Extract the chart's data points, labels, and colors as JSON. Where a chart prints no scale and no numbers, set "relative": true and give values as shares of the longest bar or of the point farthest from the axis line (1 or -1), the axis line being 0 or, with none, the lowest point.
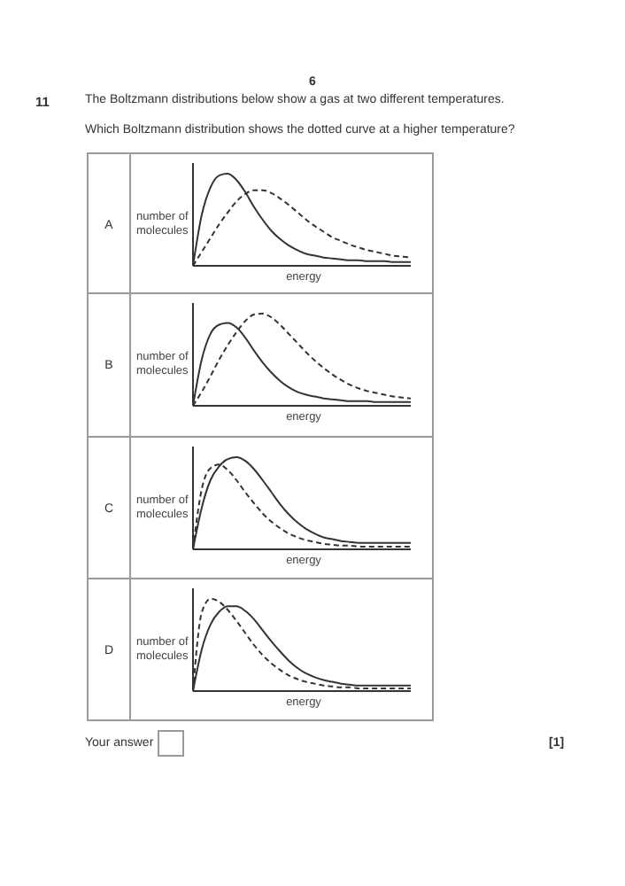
{
  "chart_data": [
    {
      "type": "line",
      "xlabel": "energy",
      "ylabel": "number of molecules",
      "relative": true,
      "marker": "none",
      "annotations": [
        "A",
        "6",
        "11",
        "The Boltzmann distributions below show a gas at two different temperatures.",
        "Which Boltzmann distribution shows the dotted curve at a higher temperature?"
      ],
      "categories": [
        null,
        null,
        null,
        null,
        null,
        null,
        null,
        null,
        null,
        null,
        null,
        null,
        null,
        null,
        null,
        null,
        null,
        null,
        null,
        null,
        null,
        null,
        null,
        null,
        null,
        null
      ],
      "series": [
        {
          "color": "#333333",
          "line_style": "solid",
          "values": [
            0,
            0.55,
            0.85,
            0.98,
            1.0,
            0.93,
            0.8,
            0.64,
            0.5,
            0.38,
            0.29,
            0.22,
            0.17,
            0.13,
            0.11,
            0.09,
            0.08,
            0.07,
            0.06,
            0.06,
            0.05,
            0.05,
            0.05,
            0.04,
            0.04,
            0.04
          ]
        },
        {
          "color": "#333333",
          "line_style": "dotted",
          "values": [
            0,
            0.15,
            0.3,
            0.45,
            0.58,
            0.7,
            0.78,
            0.82,
            0.82,
            0.79,
            0.73,
            0.66,
            0.58,
            0.5,
            0.43,
            0.37,
            0.31,
            0.27,
            0.23,
            0.2,
            0.17,
            0.15,
            0.13,
            0.11,
            0.1,
            0.09
          ]
        }
      ]
    },
    {
      "type": "line",
      "xlabel": "energy",
      "ylabel": "number of molecules",
      "relative": true,
      "marker": "none",
      "annotations": [
        "B"
      ],
      "categories": [
        null,
        null,
        null,
        null,
        null,
        null,
        null,
        null,
        null,
        null,
        null,
        null,
        null,
        null,
        null,
        null,
        null,
        null,
        null,
        null,
        null,
        null,
        null,
        null,
        null,
        null
      ],
      "series": [
        {
          "color": "#333333",
          "line_style": "solid",
          "values": [
            0,
            0.5,
            0.78,
            0.88,
            0.9,
            0.85,
            0.74,
            0.6,
            0.47,
            0.36,
            0.27,
            0.2,
            0.15,
            0.12,
            0.1,
            0.08,
            0.07,
            0.06,
            0.05,
            0.05,
            0.05,
            0.04,
            0.04,
            0.04,
            0.04,
            0.04
          ]
        },
        {
          "color": "#333333",
          "line_style": "dotted",
          "values": [
            0,
            0.15,
            0.32,
            0.5,
            0.66,
            0.8,
            0.92,
            0.99,
            1.0,
            0.96,
            0.88,
            0.78,
            0.68,
            0.58,
            0.49,
            0.41,
            0.34,
            0.28,
            0.23,
            0.19,
            0.16,
            0.14,
            0.12,
            0.1,
            0.09,
            0.08
          ]
        }
      ]
    },
    {
      "type": "line",
      "xlabel": "energy",
      "ylabel": "number of molecules",
      "relative": true,
      "marker": "none",
      "annotations": [
        "C"
      ],
      "categories": [
        null,
        null,
        null,
        null,
        null,
        null,
        null,
        null,
        null,
        null,
        null,
        null,
        null,
        null,
        null,
        null,
        null,
        null,
        null,
        null,
        null,
        null,
        null,
        null,
        null,
        null
      ],
      "series": [
        {
          "color": "#333333",
          "line_style": "solid",
          "values": [
            0,
            0.45,
            0.75,
            0.9,
            0.98,
            1.0,
            0.96,
            0.87,
            0.75,
            0.62,
            0.49,
            0.38,
            0.29,
            0.22,
            0.17,
            0.13,
            0.11,
            0.09,
            0.08,
            0.07,
            0.07,
            0.07,
            0.07,
            0.07,
            0.07,
            0.07
          ]
        },
        {
          "color": "#333333",
          "line_style": "dotted",
          "values": [
            0,
            0.65,
            0.88,
            0.92,
            0.86,
            0.75,
            0.62,
            0.5,
            0.39,
            0.3,
            0.23,
            0.17,
            0.13,
            0.1,
            0.08,
            0.06,
            0.05,
            0.04,
            0.04,
            0.03,
            0.03,
            0.03,
            0.03,
            0.03,
            0.03,
            0.03
          ]
        }
      ]
    },
    {
      "type": "line",
      "xlabel": "energy",
      "ylabel": "number of molecules",
      "relative": true,
      "marker": "none",
      "annotations": [
        "D",
        "Your answer",
        "[1]"
      ],
      "categories": [
        null,
        null,
        null,
        null,
        null,
        null,
        null,
        null,
        null,
        null,
        null,
        null,
        null,
        null,
        null,
        null,
        null,
        null,
        null,
        null,
        null,
        null,
        null,
        null,
        null,
        null
      ],
      "series": [
        {
          "color": "#333333",
          "line_style": "solid",
          "values": [
            0,
            0.45,
            0.72,
            0.86,
            0.92,
            0.92,
            0.87,
            0.78,
            0.66,
            0.54,
            0.43,
            0.33,
            0.25,
            0.19,
            0.15,
            0.12,
            0.1,
            0.08,
            0.07,
            0.06,
            0.06,
            0.06,
            0.06,
            0.06,
            0.06,
            0.06
          ]
        },
        {
          "color": "#333333",
          "line_style": "dotted",
          "values": [
            0,
            0.85,
            1.0,
            0.97,
            0.88,
            0.76,
            0.63,
            0.5,
            0.39,
            0.3,
            0.23,
            0.17,
            0.13,
            0.1,
            0.08,
            0.06,
            0.05,
            0.04,
            0.04,
            0.03,
            0.03,
            0.03,
            0.03,
            0.03,
            0.03,
            0.03
          ]
        }
      ]
    }
  ]
}
